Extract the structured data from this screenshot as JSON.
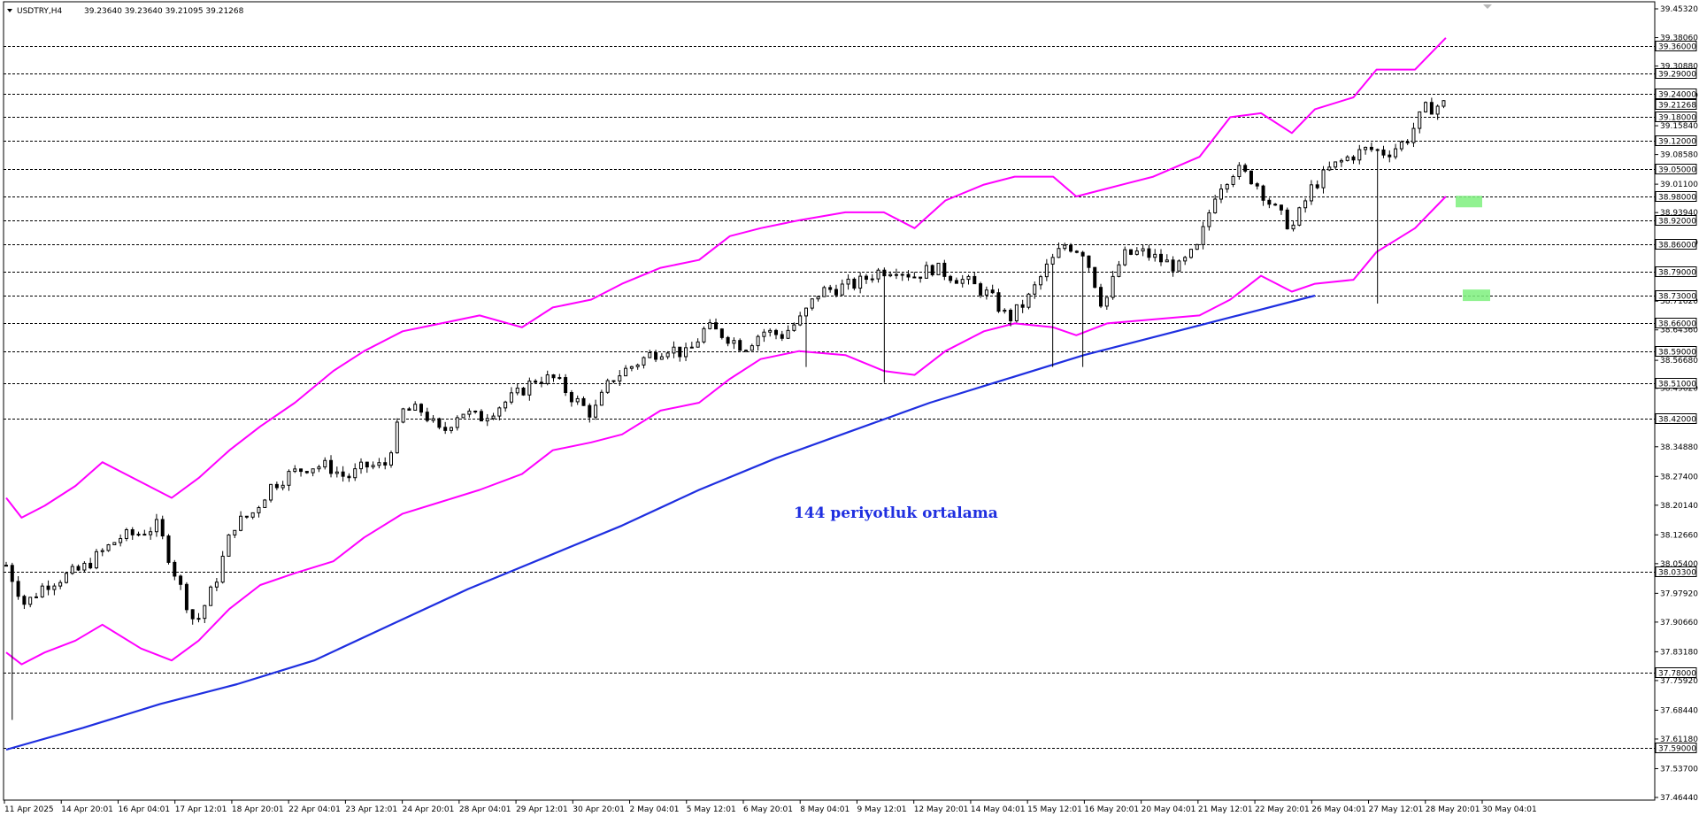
{
  "chart_data": {
    "type": "candlestick",
    "symbol_header": "USDTRY,H4",
    "header_ohlc": "39.23640 39.23640 39.21095 39.21268",
    "ylim": [
      37.4644,
      39.4532
    ],
    "price_ticks": [
      39.4532,
      39.3806,
      39.3088,
      39.2356,
      39.1584,
      39.0858,
      39.011,
      38.9394,
      38.864,
      38.7162,
      38.6436,
      38.5668,
      38.4962,
      38.3488,
      38.274,
      38.2014,
      38.1266,
      38.054,
      37.9792,
      37.9066,
      37.8318,
      37.7592,
      37.6844,
      37.6118,
      37.537,
      37.4644
    ],
    "price_tick_labels": [
      "39.45320",
      "39.38060",
      "39.30880",
      "39.23560",
      "39.15840",
      "39.08580",
      "39.01100",
      "38.93940",
      "38.86400",
      "38.71620",
      "38.64360",
      "38.56680",
      "38.49620",
      "38.34880",
      "38.27400",
      "38.20140",
      "38.12660",
      "38.05400",
      "37.97920",
      "37.90660",
      "37.83180",
      "37.75920",
      "37.68440",
      "37.61180",
      "37.53700",
      "37.46440"
    ],
    "levels": [
      39.36,
      39.29,
      39.24,
      39.18,
      39.12,
      39.05,
      38.98,
      38.92,
      38.86,
      38.79,
      38.73,
      38.66,
      38.59,
      38.51,
      38.42,
      38.033,
      37.78,
      37.59
    ],
    "level_labels": [
      "39.36000",
      "39.29000",
      "39.24000",
      "39.18000",
      "39.12000",
      "39.05000",
      "38.98000",
      "38.92000",
      "38.86000",
      "38.79000",
      "38.73000",
      "38.66000",
      "38.59000",
      "38.51000",
      "38.42000",
      "38.03300",
      "37.78000",
      "37.59000"
    ],
    "current_price_label": "39.21268",
    "current_price": 39.21268,
    "time_labels": [
      "11 Apr 2025",
      "14 Apr 20:01",
      "16 Apr 04:01",
      "17 Apr 12:01",
      "18 Apr 20:01",
      "22 Apr 04:01",
      "23 Apr 12:01",
      "24 Apr 20:01",
      "28 Apr 04:01",
      "29 Apr 12:01",
      "30 Apr 20:01",
      "2 May 04:01",
      "5 May 12:01",
      "6 May 20:01",
      "8 May 04:01",
      "9 May 12:01",
      "12 May 20:01",
      "14 May 04:01",
      "15 May 12:01",
      "16 May 20:01",
      "20 May 04:01",
      "21 May 12:01",
      "22 May 20:01",
      "26 May 04:01",
      "27 May 12:01",
      "28 May 20:01",
      "30 May 04:01"
    ],
    "bar_count": 240,
    "candle_path": [
      38.05,
      37.95,
      38.0,
      38.02,
      38.04,
      38.08,
      38.12,
      38.13,
      38.15,
      38.02,
      37.9,
      38.0,
      38.15,
      38.18,
      38.25,
      38.28,
      38.3,
      38.3,
      38.27,
      38.3,
      38.3,
      38.44,
      38.44,
      38.38,
      38.44,
      38.42,
      38.45,
      38.48,
      38.52,
      38.52,
      38.47,
      38.43,
      38.52,
      38.55,
      38.58,
      38.6,
      38.58,
      38.65,
      38.63,
      38.6,
      38.64,
      38.63,
      38.67,
      38.74,
      38.75,
      38.76,
      38.79,
      38.8,
      38.78,
      38.8,
      38.78,
      38.76,
      38.73,
      38.67,
      38.72,
      38.8,
      38.86,
      38.84,
      38.7,
      38.83,
      38.84,
      38.82,
      38.8,
      38.85,
      39.0,
      39.05,
      39.02,
      38.95,
      38.9,
      39.0,
      39.05,
      39.08,
      39.1,
      39.09,
      39.12,
      39.2,
      39.21268
    ],
    "deep_wicks": [
      [
        2,
        37.66
      ],
      [
        57,
        37.86
      ],
      [
        60,
        37.85
      ],
      [
        101,
        38.09
      ],
      [
        168,
        38.38
      ],
      [
        199,
        38.32
      ],
      [
        201,
        38.32
      ],
      [
        208,
        38.55
      ],
      [
        228,
        38.51
      ],
      [
        272,
        38.55
      ],
      [
        276,
        38.59
      ],
      [
        280,
        38.55
      ],
      [
        332,
        38.72
      ],
      [
        356,
        38.71
      ]
    ],
    "ma_label": "144 periyotluk ortalama",
    "ma_period": 144,
    "ma_series": [
      [
        0,
        37.585
      ],
      [
        20,
        37.64
      ],
      [
        40,
        37.7
      ],
      [
        60,
        37.75
      ],
      [
        80,
        37.81
      ],
      [
        100,
        37.9
      ],
      [
        120,
        37.99
      ],
      [
        140,
        38.07
      ],
      [
        160,
        38.15
      ],
      [
        180,
        38.24
      ],
      [
        200,
        38.32
      ],
      [
        220,
        38.39
      ],
      [
        240,
        38.46
      ],
      [
        260,
        38.52
      ],
      [
        280,
        38.58
      ],
      [
        300,
        38.63
      ],
      [
        320,
        38.68
      ],
      [
        340,
        38.73
      ]
    ],
    "bb_upper": [
      [
        0,
        38.22
      ],
      [
        4,
        38.17
      ],
      [
        10,
        38.2
      ],
      [
        18,
        38.25
      ],
      [
        25,
        38.31
      ],
      [
        35,
        38.26
      ],
      [
        43,
        38.22
      ],
      [
        50,
        38.27
      ],
      [
        58,
        38.34
      ],
      [
        66,
        38.4
      ],
      [
        75,
        38.46
      ],
      [
        85,
        38.54
      ],
      [
        93,
        38.59
      ],
      [
        103,
        38.64
      ],
      [
        113,
        38.66
      ],
      [
        123,
        38.68
      ],
      [
        134,
        38.65
      ],
      [
        142,
        38.7
      ],
      [
        152,
        38.72
      ],
      [
        160,
        38.76
      ],
      [
        170,
        38.8
      ],
      [
        180,
        38.82
      ],
      [
        188,
        38.88
      ],
      [
        196,
        38.9
      ],
      [
        206,
        38.92
      ],
      [
        218,
        38.94
      ],
      [
        228,
        38.94
      ],
      [
        236,
        38.9
      ],
      [
        244,
        38.97
      ],
      [
        254,
        39.01
      ],
      [
        262,
        39.03
      ],
      [
        272,
        39.03
      ],
      [
        278,
        38.98
      ],
      [
        286,
        39.0
      ],
      [
        298,
        39.03
      ],
      [
        310,
        39.08
      ],
      [
        318,
        39.18
      ],
      [
        326,
        39.19
      ],
      [
        334,
        39.14
      ],
      [
        340,
        39.2
      ],
      [
        350,
        39.23
      ],
      [
        356,
        39.3
      ],
      [
        366,
        39.3
      ],
      [
        374,
        39.38
      ]
    ],
    "bb_lower": [
      [
        0,
        37.83
      ],
      [
        4,
        37.8
      ],
      [
        10,
        37.83
      ],
      [
        18,
        37.86
      ],
      [
        25,
        37.9
      ],
      [
        35,
        37.84
      ],
      [
        43,
        37.81
      ],
      [
        50,
        37.86
      ],
      [
        58,
        37.94
      ],
      [
        66,
        38.0
      ],
      [
        75,
        38.03
      ],
      [
        85,
        38.06
      ],
      [
        93,
        38.12
      ],
      [
        103,
        38.18
      ],
      [
        113,
        38.21
      ],
      [
        123,
        38.24
      ],
      [
        134,
        38.28
      ],
      [
        142,
        38.34
      ],
      [
        152,
        38.36
      ],
      [
        160,
        38.38
      ],
      [
        170,
        38.44
      ],
      [
        180,
        38.46
      ],
      [
        188,
        38.52
      ],
      [
        196,
        38.57
      ],
      [
        206,
        38.59
      ],
      [
        218,
        38.58
      ],
      [
        228,
        38.54
      ],
      [
        236,
        38.53
      ],
      [
        244,
        38.59
      ],
      [
        254,
        38.64
      ],
      [
        262,
        38.66
      ],
      [
        272,
        38.65
      ],
      [
        278,
        38.63
      ],
      [
        286,
        38.66
      ],
      [
        298,
        38.67
      ],
      [
        310,
        38.68
      ],
      [
        318,
        38.72
      ],
      [
        326,
        38.78
      ],
      [
        334,
        38.74
      ],
      [
        340,
        38.76
      ],
      [
        350,
        38.77
      ],
      [
        356,
        38.84
      ],
      [
        366,
        38.9
      ],
      [
        374,
        38.98
      ]
    ],
    "highlights": [
      [
        38.975,
        38.98
      ],
      [
        38.732,
        38.728
      ]
    ],
    "colors": {
      "background": "#ffffff",
      "candle": "#000000",
      "ma": "#1f2fe0",
      "bands": "#ff00ff",
      "highlight": "#7ef07e",
      "level": "#000000"
    },
    "grid": false
  }
}
